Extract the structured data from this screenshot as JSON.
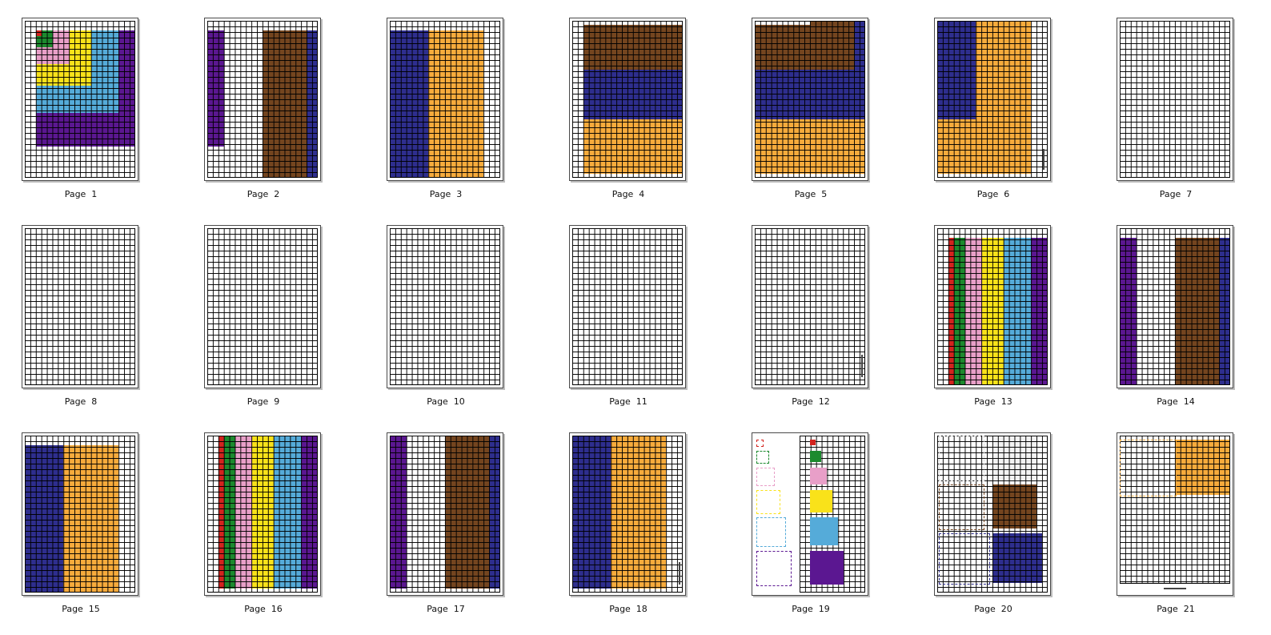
{
  "colors": {
    "red": "#d3231e",
    "green": "#1c8a2e",
    "pink": "#e89fc8",
    "yellow": "#f9e21a",
    "lightblue": "#55abd9",
    "purple": "#5b1791",
    "brown": "#74451f",
    "navy": "#2e2e8e",
    "orange": "#f7ab3c",
    "lightgray": "#f3f3f3"
  },
  "pages": [
    {
      "label": "Page  1"
    },
    {
      "label": "Page  2"
    },
    {
      "label": "Page  3"
    },
    {
      "label": "Page  4"
    },
    {
      "label": "Page  5"
    },
    {
      "label": "Page  6"
    },
    {
      "label": "Page  7"
    },
    {
      "label": "Page  8"
    },
    {
      "label": "Page  9"
    },
    {
      "label": "Page  10"
    },
    {
      "label": "Page  11"
    },
    {
      "label": "Page  12"
    },
    {
      "label": "Page  13"
    },
    {
      "label": "Page  14"
    },
    {
      "label": "Page  15"
    },
    {
      "label": "Page  16"
    },
    {
      "label": "Page  17"
    },
    {
      "label": "Page  18"
    },
    {
      "label": "Page  19"
    },
    {
      "label": "Page  20"
    },
    {
      "label": "Page  21"
    }
  ]
}
